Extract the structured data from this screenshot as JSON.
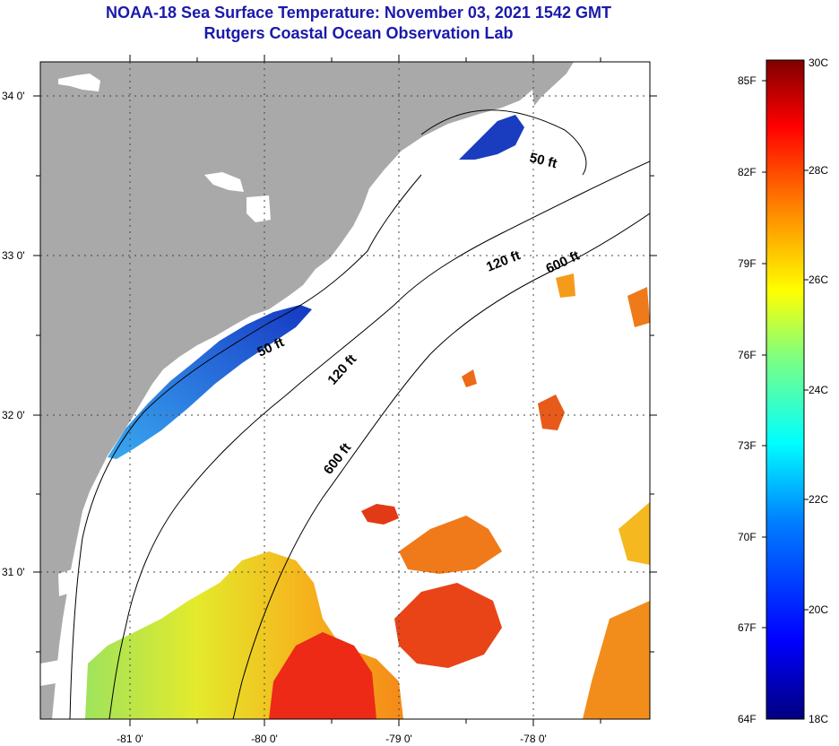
{
  "header": {
    "title": "NOAA-18 Sea Surface Temperature:  November 03, 2021 1542 GMT",
    "subtitle": "Rutgers Coastal Ocean Observation Lab"
  },
  "map": {
    "lat_labels": [
      "34 0'",
      "33 0'",
      "32 0'",
      "31 0'"
    ],
    "lon_labels": [
      "-81 0'",
      "-80 0'",
      "-79 0'",
      "-78 0'"
    ],
    "contour_labels": [
      "50 ft",
      "120 ft",
      "600 ft",
      "50 ft",
      "120 ft",
      "600 ft"
    ],
    "colors": {
      "land": "#a9a9a9",
      "water_nodata": "#ffffff"
    }
  },
  "colorbar": {
    "fahrenheit_labels": [
      "85F",
      "82F",
      "79F",
      "76F",
      "73F",
      "70F",
      "67F",
      "64F"
    ],
    "celsius_labels": [
      "30C",
      "28C",
      "26C",
      "24C",
      "22C",
      "20C",
      "18C"
    ],
    "range_celsius": [
      18,
      30
    ],
    "colors": [
      "#00007f",
      "#0000ff",
      "#007fff",
      "#00ffff",
      "#7fff7f",
      "#ffff00",
      "#ff7f00",
      "#ff0000",
      "#7f0000"
    ]
  }
}
